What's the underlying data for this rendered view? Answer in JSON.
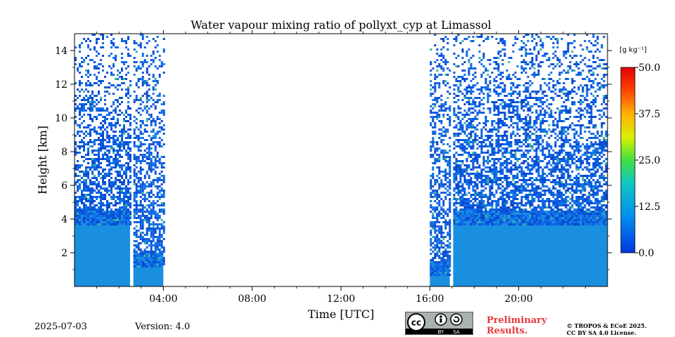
{
  "chart_data": {
    "type": "heatmap",
    "title": "Water vapour mixing ratio of pollyxt_cyp at Limassol",
    "xlabel": "Time [UTC]",
    "ylabel": "Height [km]",
    "x_ticks": [
      "04:00",
      "08:00",
      "12:00",
      "16:00",
      "20:00"
    ],
    "x_tick_hours": [
      4,
      8,
      12,
      16,
      20
    ],
    "xlim_hours": [
      0,
      24
    ],
    "y_ticks": [
      2,
      4,
      6,
      8,
      10,
      12,
      14
    ],
    "ylim_km": [
      0,
      15
    ],
    "colorbar": {
      "label": "[g kg⁻¹]",
      "ticks": [
        "0.0",
        "12.5",
        "25.0",
        "37.5",
        "50.0"
      ],
      "tick_values": [
        0,
        12.5,
        25,
        37.5,
        50
      ],
      "range": [
        0,
        50
      ],
      "colormap": "jet"
    },
    "data_segments": [
      {
        "start_hour": 0.0,
        "end_hour": 2.5,
        "dense_top_km": 4.5,
        "sparse_top_km": 15,
        "typical_value": 8
      },
      {
        "start_hour": 2.65,
        "end_hour": 4.0,
        "dense_top_km": 2.0,
        "sparse_top_km": 15,
        "typical_value": 8
      },
      {
        "start_hour": 16.0,
        "end_hour": 16.9,
        "dense_top_km": 1.5,
        "sparse_top_km": 15,
        "typical_value": 9
      },
      {
        "start_hour": 17.05,
        "end_hour": 24.0,
        "dense_top_km": 4.5,
        "sparse_top_km": 15,
        "typical_value": 8
      }
    ],
    "colors": {
      "low": "#0a5ad8",
      "mid": "#1a8fe0",
      "accent": "#3cb5a0"
    }
  },
  "footer": {
    "date": "2025-07-03",
    "version": "Version: 4.0",
    "preliminary_line1": "Preliminary",
    "preliminary_line2": "Results.",
    "copyright_line1": "© TROPOS & ECoE 2025.",
    "copyright_line2": "CC BY SA 4.0 License.",
    "license_badge": {
      "cc": "cc",
      "by": "BY",
      "sa": "SA"
    }
  }
}
